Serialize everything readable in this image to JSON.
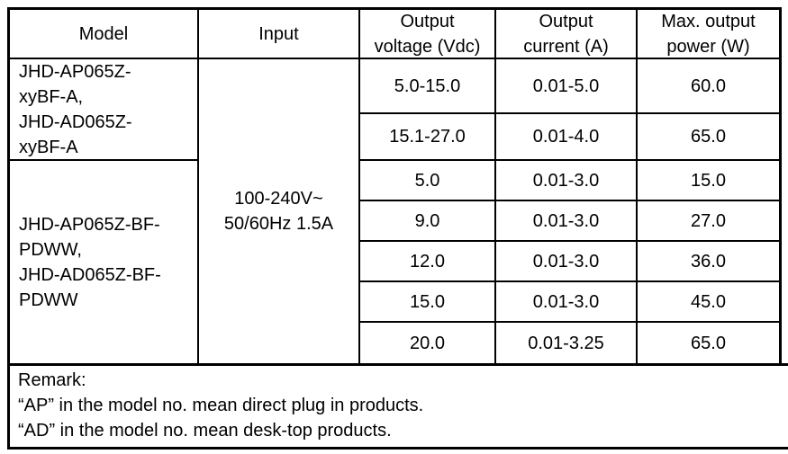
{
  "colors": {
    "border": "#000000",
    "background": "#ffffff",
    "text": "#000000"
  },
  "table": {
    "headers": {
      "model": "Model",
      "input": "Input",
      "voltage": "Output\nvoltage (Vdc)",
      "current": "Output\ncurrent (A)",
      "power": "Max. output\npower (W)"
    },
    "model_groups": [
      {
        "label": "JHD-AP065Z-\nxyBF-A,\nJHD-AD065Z-\nxyBF-A"
      },
      {
        "label": "JHD-AP065Z-BF-\nPDWW,\nJHD-AD065Z-BF-\nPDWW"
      }
    ],
    "input_value": "100-240V~\n50/60Hz 1.5A",
    "rows": [
      {
        "voltage": "5.0-15.0",
        "current": "0.01-5.0",
        "power": "60.0"
      },
      {
        "voltage": "15.1-27.0",
        "current": "0.01-4.0",
        "power": "65.0"
      },
      {
        "voltage": "5.0",
        "current": "0.01-3.0",
        "power": "15.0"
      },
      {
        "voltage": "9.0",
        "current": "0.01-3.0",
        "power": "27.0"
      },
      {
        "voltage": "12.0",
        "current": "0.01-3.0",
        "power": "36.0"
      },
      {
        "voltage": "15.0",
        "current": "0.01-3.0",
        "power": "45.0"
      },
      {
        "voltage": "20.0",
        "current": "0.01-3.25",
        "power": "65.0"
      }
    ]
  },
  "remark": {
    "title": "Remark:",
    "line1": "“AP” in the model no. mean direct plug in products.",
    "line2": "“AD” in the model no. mean desk-top products."
  }
}
